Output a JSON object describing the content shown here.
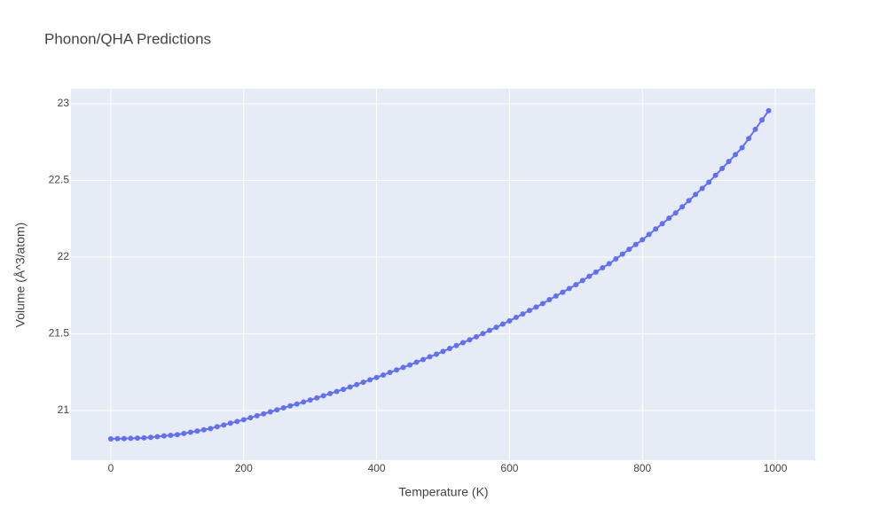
{
  "chart_data": {
    "type": "line",
    "title": "Phonon/QHA Predictions",
    "xlabel": "Temperature (K)",
    "ylabel": "Volume (Å^3/atom)",
    "x": [
      0,
      10,
      20,
      30,
      40,
      50,
      60,
      70,
      80,
      90,
      100,
      110,
      120,
      130,
      140,
      150,
      160,
      170,
      180,
      190,
      200,
      210,
      220,
      230,
      240,
      250,
      260,
      270,
      280,
      290,
      300,
      310,
      320,
      330,
      340,
      350,
      360,
      370,
      380,
      390,
      400,
      410,
      420,
      430,
      440,
      450,
      460,
      470,
      480,
      490,
      500,
      510,
      520,
      530,
      540,
      550,
      560,
      570,
      580,
      590,
      600,
      610,
      620,
      630,
      640,
      650,
      660,
      670,
      680,
      690,
      700,
      710,
      720,
      730,
      740,
      750,
      760,
      770,
      780,
      790,
      800,
      810,
      820,
      830,
      840,
      850,
      860,
      870,
      880,
      890,
      900,
      910,
      920,
      930,
      940,
      950,
      960,
      970,
      980,
      990
    ],
    "values": [
      20.815,
      20.816,
      20.817,
      20.818,
      20.82,
      20.821,
      20.825,
      20.829,
      20.834,
      20.838,
      20.842,
      20.85,
      20.858,
      20.866,
      20.874,
      20.882,
      20.894,
      20.905,
      20.917,
      20.928,
      20.94,
      20.953,
      20.966,
      20.978,
      20.991,
      21.004,
      21.017,
      21.03,
      21.042,
      21.055,
      21.068,
      21.082,
      21.096,
      21.11,
      21.124,
      21.138,
      21.153,
      21.169,
      21.184,
      21.2,
      21.215,
      21.231,
      21.248,
      21.264,
      21.281,
      21.297,
      21.315,
      21.332,
      21.35,
      21.367,
      21.385,
      21.404,
      21.423,
      21.442,
      21.461,
      21.48,
      21.501,
      21.522,
      21.542,
      21.563,
      21.584,
      21.607,
      21.629,
      21.652,
      21.674,
      21.697,
      21.722,
      21.746,
      21.771,
      21.795,
      21.82,
      21.847,
      21.875,
      21.902,
      21.93,
      21.957,
      21.988,
      22.019,
      22.051,
      22.082,
      22.113,
      22.148,
      22.183,
      22.218,
      22.253,
      22.288,
      22.328,
      22.368,
      22.408,
      22.448,
      22.488,
      22.533,
      22.578,
      22.623,
      22.668,
      22.713,
      22.773,
      22.833,
      22.894,
      22.954
    ],
    "color": "#636efa",
    "xlim": [
      -60,
      1060
    ],
    "ylim": [
      20.676,
      23.098
    ],
    "xticks": [
      0,
      200,
      400,
      600,
      800,
      1000
    ],
    "yticks": [
      21,
      21.5,
      22,
      22.5,
      23
    ],
    "grid": true,
    "markers": true
  }
}
